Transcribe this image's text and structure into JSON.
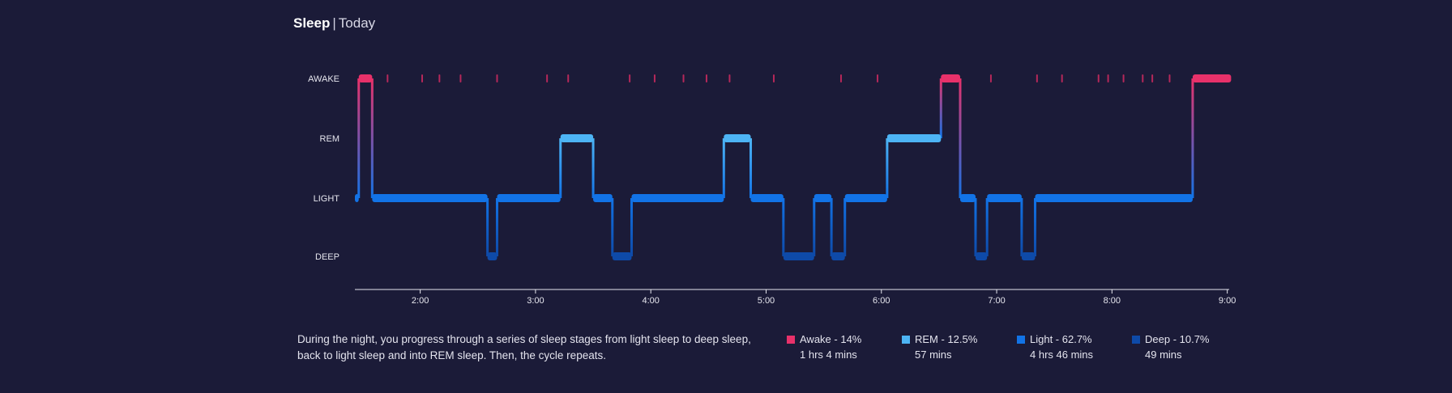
{
  "header": {
    "title": "Sleep",
    "separator": "|",
    "subtitle": "Today"
  },
  "description": "During the night, you progress through a series of sleep stages from light sleep to deep sleep, back to light sleep and into REM sleep. Then, the cycle repeats.",
  "legend": [
    {
      "label": "Awake - 14%",
      "duration": "1 hrs 4 mins",
      "color": "#e8316a"
    },
    {
      "label": "REM - 12.5%",
      "duration": "57 mins",
      "color": "#4db4f4"
    },
    {
      "label": "Light - 62.7%",
      "duration": "4 hrs 46 mins",
      "color": "#1273e6"
    },
    {
      "label": "Deep - 10.7%",
      "duration": "49 mins",
      "color": "#0e4aa8"
    }
  ],
  "chart_data": {
    "type": "line",
    "subtype": "step / hypnogram",
    "y_categories": [
      "AWAKE",
      "REM",
      "LIGHT",
      "DEEP"
    ],
    "x_ticks": [
      "2:00",
      "3:00",
      "4:00",
      "5:00",
      "6:00",
      "7:00",
      "8:00",
      "9:00"
    ],
    "x_range": [
      "1:26",
      "9:01"
    ],
    "colors": {
      "AWAKE": "#e8316a",
      "REM": "#4db4f4",
      "LIGHT": "#1273e6",
      "DEEP": "#0e4aa8"
    },
    "segments": [
      {
        "stage": "LIGHT",
        "start": "1:26",
        "end": "1:28"
      },
      {
        "stage": "AWAKE",
        "start": "1:28",
        "end": "1:35"
      },
      {
        "stage": "LIGHT",
        "start": "1:35",
        "end": "2:35"
      },
      {
        "stage": "DEEP",
        "start": "2:35",
        "end": "2:40"
      },
      {
        "stage": "LIGHT",
        "start": "2:40",
        "end": "3:13"
      },
      {
        "stage": "REM",
        "start": "3:13",
        "end": "3:30"
      },
      {
        "stage": "LIGHT",
        "start": "3:30",
        "end": "3:40"
      },
      {
        "stage": "DEEP",
        "start": "3:40",
        "end": "3:50"
      },
      {
        "stage": "LIGHT",
        "start": "3:50",
        "end": "4:38"
      },
      {
        "stage": "REM",
        "start": "4:38",
        "end": "4:52"
      },
      {
        "stage": "LIGHT",
        "start": "4:52",
        "end": "5:09"
      },
      {
        "stage": "DEEP",
        "start": "5:09",
        "end": "5:25"
      },
      {
        "stage": "LIGHT",
        "start": "5:25",
        "end": "5:34"
      },
      {
        "stage": "DEEP",
        "start": "5:34",
        "end": "5:41"
      },
      {
        "stage": "LIGHT",
        "start": "5:41",
        "end": "6:03"
      },
      {
        "stage": "REM",
        "start": "6:03",
        "end": "6:31"
      },
      {
        "stage": "AWAKE",
        "start": "6:31",
        "end": "6:41"
      },
      {
        "stage": "LIGHT",
        "start": "6:41",
        "end": "6:49"
      },
      {
        "stage": "DEEP",
        "start": "6:49",
        "end": "6:55"
      },
      {
        "stage": "LIGHT",
        "start": "6:55",
        "end": "7:13"
      },
      {
        "stage": "DEEP",
        "start": "7:13",
        "end": "7:20"
      },
      {
        "stage": "LIGHT",
        "start": "7:20",
        "end": "8:42"
      },
      {
        "stage": "AWAKE",
        "start": "8:42",
        "end": "9:02"
      }
    ],
    "awake_ticks": [
      "1:43",
      "2:01",
      "2:10",
      "2:21",
      "2:40",
      "3:06",
      "3:17",
      "3:49",
      "4:02",
      "4:17",
      "4:29",
      "4:41",
      "5:04",
      "5:39",
      "5:58",
      "6:57",
      "7:21",
      "7:34",
      "7:53",
      "7:58",
      "8:06",
      "8:16",
      "8:21",
      "8:30"
    ]
  }
}
